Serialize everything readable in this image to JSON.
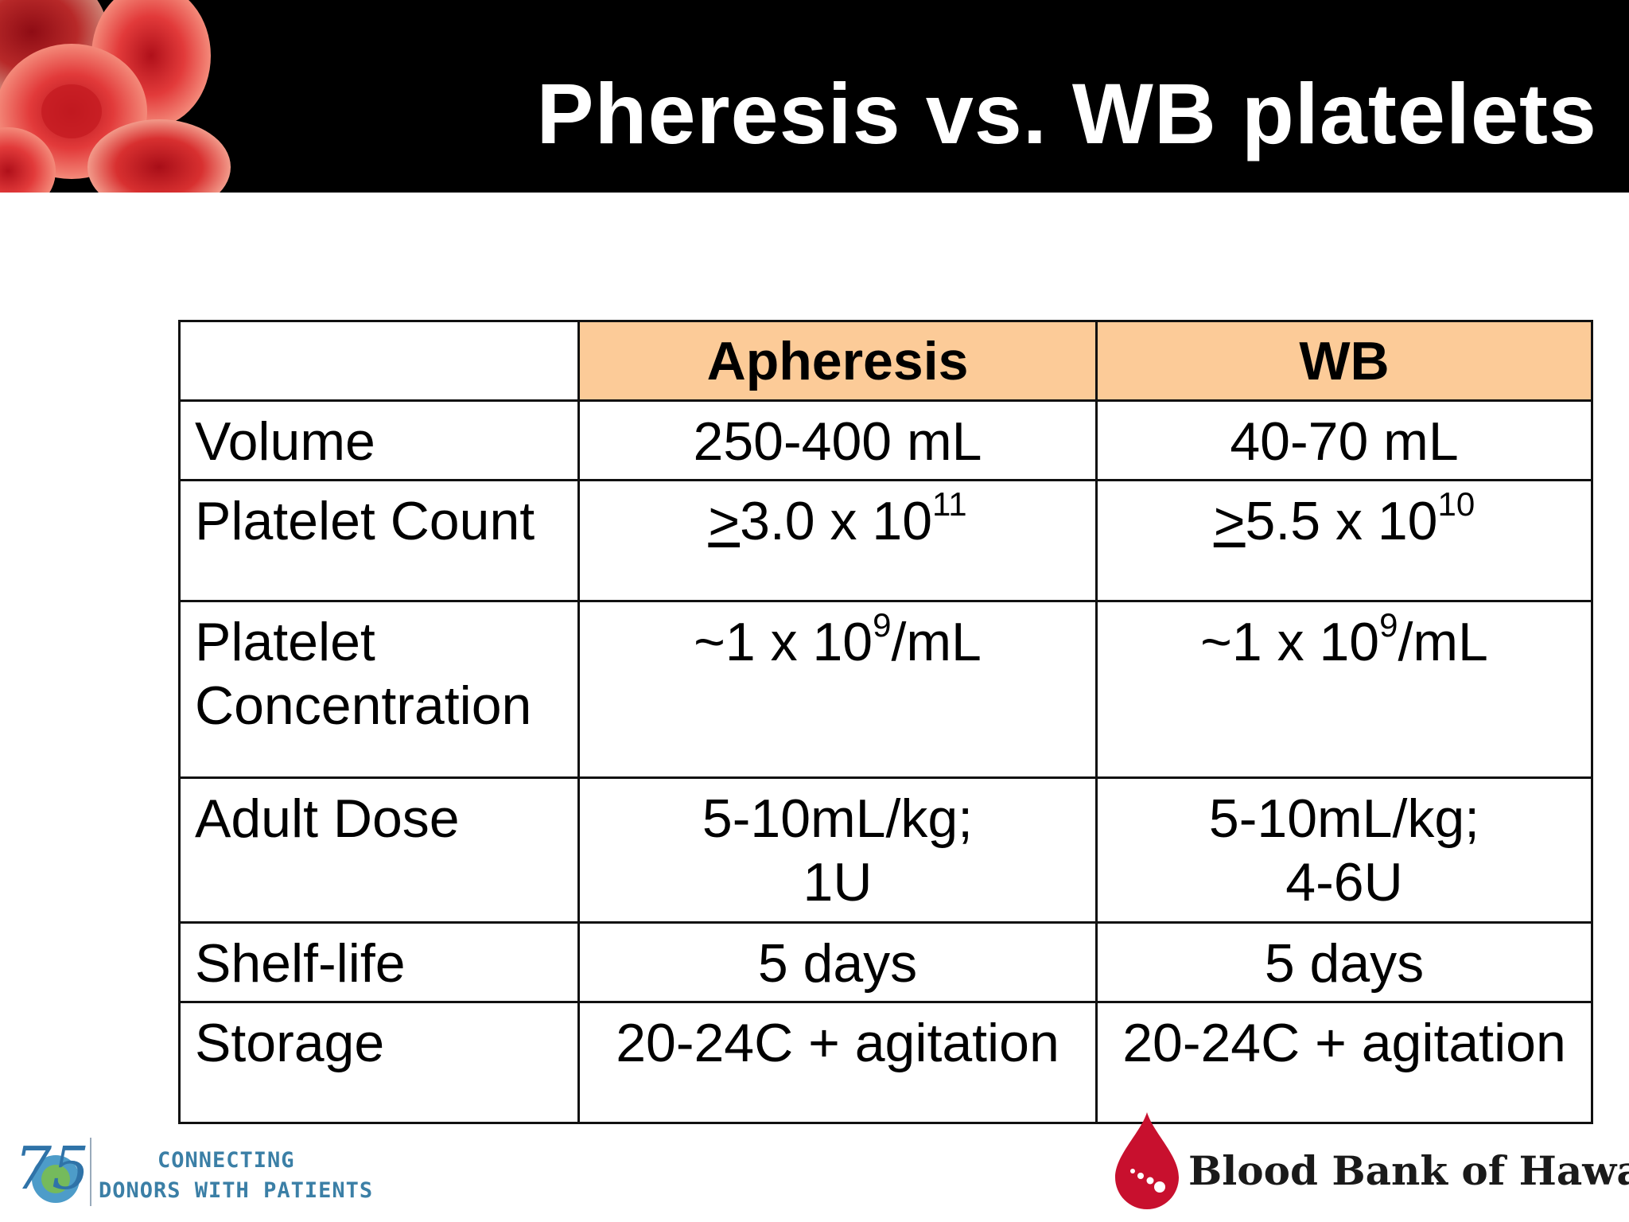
{
  "slide": {
    "title": "Pheresis vs. WB platelets"
  },
  "table": {
    "headers": {
      "col_a": "Apheresis",
      "col_b": "WB"
    },
    "rows": {
      "volume": {
        "label": "Volume",
        "a": "250-400 mL",
        "b": "40-70 mL"
      },
      "platelet_count": {
        "label": "Platelet Count",
        "a": {
          "ge": ">",
          "base": "3.0 x 10",
          "exp": "11"
        },
        "b": {
          "ge": ">",
          "base": "5.5 x 10",
          "exp": "10"
        }
      },
      "platelet_concentration": {
        "label_line1": "Platelet",
        "label_line2": "Concentration",
        "a": {
          "base": "~1 x 10",
          "exp": "9",
          "unit": "/mL"
        },
        "b": {
          "base": "~1 x 10",
          "exp": "9",
          "unit": "/mL"
        }
      },
      "adult_dose": {
        "label": "Adult Dose",
        "a_line1": "5-10mL/kg;",
        "a_line2": "1U",
        "b_line1": "5-10mL/kg;",
        "b_line2": "4-6U"
      },
      "shelf_life": {
        "label": "Shelf-life",
        "a": "5 days",
        "b": "5 days"
      },
      "storage": {
        "label": "Storage",
        "a": "20-24C + agitation",
        "b": "20-24C + agitation"
      }
    }
  },
  "footer": {
    "anniversary_logo_text": "75",
    "tagline_line1": "CONNECTING",
    "tagline_line2": "DONORS WITH PATIENTS",
    "org_name": "Blood Bank of Hawaii"
  },
  "colors": {
    "header_bg": "#000000",
    "header_fill": "#fccb98",
    "blood_red": "#c8102e",
    "tagline_blue": "#3b7fa6"
  }
}
